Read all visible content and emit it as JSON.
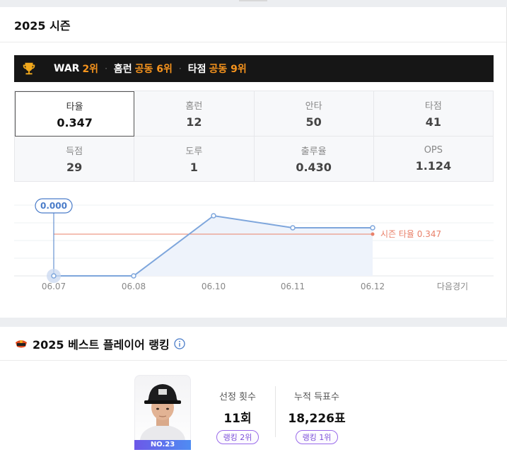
{
  "season": {
    "title": "2025 시즌",
    "rankings": [
      {
        "label": "WAR",
        "value": "2위"
      },
      {
        "label": "홈런",
        "value": "공동 6위"
      },
      {
        "label": "타점",
        "value": "공동 9위"
      }
    ],
    "stats": [
      {
        "label": "타율",
        "value": "0.347",
        "selected": true
      },
      {
        "label": "홈런",
        "value": "12"
      },
      {
        "label": "안타",
        "value": "50"
      },
      {
        "label": "타점",
        "value": "41"
      },
      {
        "label": "득점",
        "value": "29"
      },
      {
        "label": "도루",
        "value": "1"
      },
      {
        "label": "출루율",
        "value": "0.430"
      },
      {
        "label": "OPS",
        "value": "1.124"
      }
    ]
  },
  "chart_data": {
    "type": "line",
    "title": "",
    "xlabel": "",
    "ylabel": "",
    "categories": [
      "06.07",
      "06.08",
      "06.10",
      "06.11",
      "06.12"
    ],
    "next_label": "다음경기",
    "series": [
      {
        "name": "",
        "values": [
          0.0,
          0.0,
          0.5,
          0.4,
          0.4
        ]
      }
    ],
    "ylim": [
      0,
      0.6
    ],
    "reference_line": {
      "label": "시즌 타율 0.347",
      "value": 0.347
    },
    "tooltip": {
      "label": "0.000",
      "index": 0
    },
    "grid": true,
    "colors": {
      "line": "#7ea6dc",
      "area": "#eef3fb",
      "reference": "#e9816a",
      "tooltip": "#4a7cc9"
    }
  },
  "best_player": {
    "title": "2025 베스트 플레이어 랭킹",
    "player_number": "NO.23",
    "stats": [
      {
        "label": "선정 횟수",
        "value": "11회",
        "badge": "랭킹 2위"
      },
      {
        "label": "누적 득표수",
        "value": "18,226표",
        "badge": "랭킹 1위"
      }
    ]
  }
}
